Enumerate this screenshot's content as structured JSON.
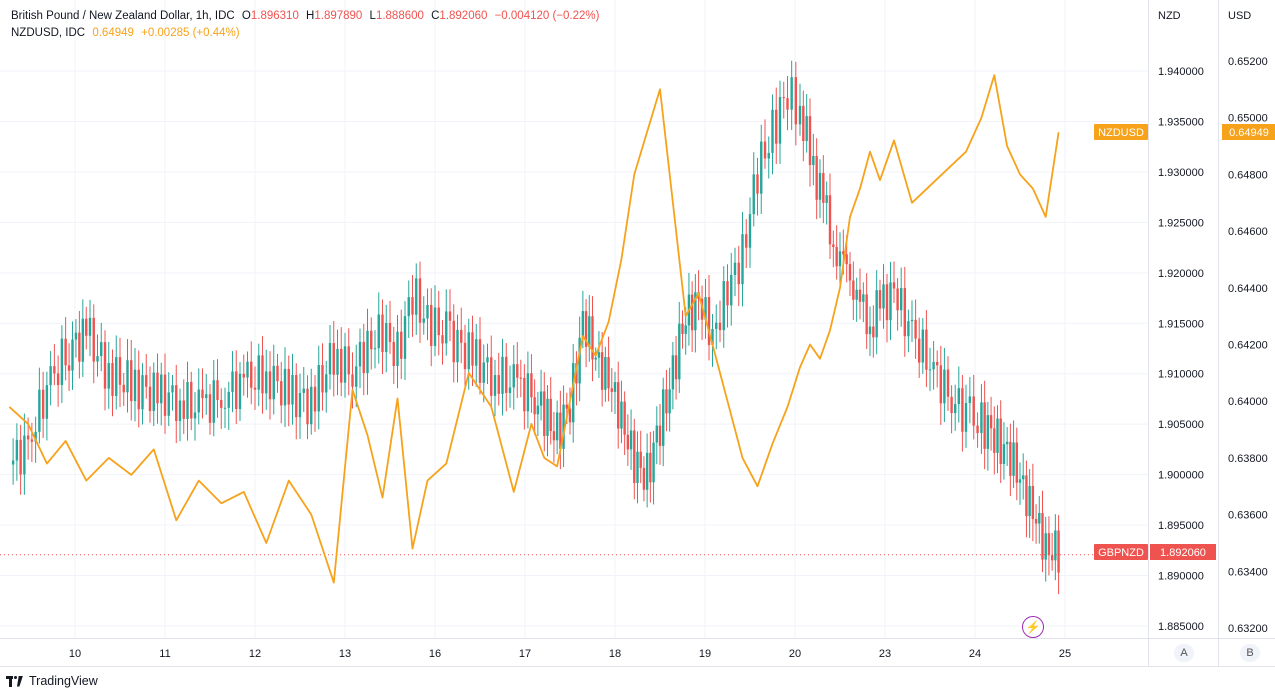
{
  "legend": {
    "main_title": "British Pound / New Zealand Dollar, 1h, IDC",
    "o_key": "O",
    "o_val": "1.896310",
    "h_key": "H",
    "h_val": "1.897890",
    "l_key": "L",
    "l_val": "1.888600",
    "c_key": "C",
    "c_val": "1.892060",
    "change": "−0.004120 (−0.22%)",
    "overlay_title": "NZDUSD, IDC",
    "overlay_val": "0.64949",
    "overlay_change": "+0.00285 (+0.44%)"
  },
  "axis_headers": {
    "right": "NZD",
    "left_scale": "USD"
  },
  "badges": {
    "overlay_label": "NZDUSD",
    "overlay_value": "0.64949",
    "main_label": "GBPNZD",
    "main_value": "1.892060"
  },
  "footer": {
    "brand": "TradingView"
  },
  "buttons": {
    "a": "A",
    "b": "B"
  },
  "colors": {
    "up": "#26a69a",
    "down": "#ef5350",
    "overlay": "#f7a21b",
    "grid": "#f0f3fa"
  },
  "chart_data": {
    "type": "candlestick",
    "title": "British Pound / New Zealand Dollar, 1h, IDC",
    "x_ticks": [
      "10",
      "11",
      "12",
      "13",
      "16",
      "17",
      "18",
      "19",
      "20",
      "23",
      "24",
      "25"
    ],
    "y_ticks_nzd": [
      "1.940000",
      "1.935000",
      "1.930000",
      "1.925000",
      "1.920000",
      "1.915000",
      "1.910000",
      "1.905000",
      "1.900000",
      "1.895000",
      "1.890000",
      "1.885000"
    ],
    "y_ticks_usd": [
      "0.65200",
      "0.65000",
      "0.64800",
      "0.64600",
      "0.64400",
      "0.64200",
      "0.64000",
      "0.63800",
      "0.63600",
      "0.63400",
      "0.63200"
    ],
    "ylim_nzd": [
      1.8834,
      1.9446
    ],
    "ylim_usd": [
      0.6314,
      0.6534
    ],
    "series": [
      {
        "name": "GBPNZD",
        "axis": "NZD",
        "close_path": [
          [
            "9",
            1.901
          ],
          [
            "9",
            1.903
          ],
          [
            "9",
            1.9085
          ],
          [
            "9",
            1.912
          ],
          [
            "10",
            1.914
          ],
          [
            "10",
            1.91
          ],
          [
            "10",
            1.909
          ],
          [
            "10",
            1.908
          ],
          [
            "11",
            1.9075
          ],
          [
            "11",
            1.9065
          ],
          [
            "11",
            1.908
          ],
          [
            "11",
            1.909
          ],
          [
            "12",
            1.91
          ],
          [
            "12",
            1.908
          ],
          [
            "12",
            1.907
          ],
          [
            "12",
            1.912
          ],
          [
            "13",
            1.91
          ],
          [
            "13",
            1.913
          ],
          [
            "13",
            1.914
          ],
          [
            "13",
            1.912
          ],
          [
            "13",
            1.918
          ],
          [
            "13",
            1.915
          ],
          [
            "16",
            1.914
          ],
          [
            "16",
            1.912
          ],
          [
            "16",
            1.91
          ],
          [
            "16",
            1.909
          ],
          [
            "17",
            1.908
          ],
          [
            "17",
            1.906
          ],
          [
            "17",
            1.904
          ],
          [
            "17",
            1.907
          ],
          [
            "17",
            1.915
          ],
          [
            "17",
            1.912
          ],
          [
            "17",
            1.909
          ],
          [
            "18",
            1.906
          ],
          [
            "18",
            1.901
          ],
          [
            "18",
            1.9
          ],
          [
            "18",
            1.905
          ],
          [
            "18",
            1.91
          ],
          [
            "18",
            1.916
          ],
          [
            "18",
            1.917
          ],
          [
            "19",
            1.914
          ],
          [
            "19",
            1.918
          ],
          [
            "19",
            1.922
          ],
          [
            "19",
            1.93
          ],
          [
            "19",
            1.934
          ],
          [
            "19",
            1.938
          ],
          [
            "20",
            1.936
          ],
          [
            "20",
            1.932
          ],
          [
            "20",
            1.928
          ],
          [
            "20",
            1.925
          ],
          [
            "20",
            1.92
          ],
          [
            "20",
            1.921
          ],
          [
            "20",
            1.916
          ],
          [
            "20",
            1.915
          ],
          [
            "20",
            1.917
          ],
          [
            "23",
            1.918
          ],
          [
            "23",
            1.914
          ],
          [
            "23",
            1.911
          ],
          [
            "23",
            1.908
          ],
          [
            "23",
            1.906
          ],
          [
            "24",
            1.905
          ],
          [
            "24",
            1.904
          ],
          [
            "24",
            1.902
          ],
          [
            "24",
            1.9
          ],
          [
            "24",
            1.896
          ],
          [
            "24",
            1.893
          ],
          [
            "24",
            1.8921
          ]
        ]
      },
      {
        "name": "NZDUSD",
        "axis": "USD",
        "close_path": [
          [
            "9",
            0.6398
          ],
          [
            "9",
            0.6392
          ],
          [
            "9",
            0.6378
          ],
          [
            "9",
            0.6386
          ],
          [
            "10",
            0.6372
          ],
          [
            "10",
            0.638
          ],
          [
            "10",
            0.6374
          ],
          [
            "10",
            0.6383
          ],
          [
            "11",
            0.6358
          ],
          [
            "11",
            0.6372
          ],
          [
            "11",
            0.6364
          ],
          [
            "11",
            0.6368
          ],
          [
            "12",
            0.635
          ],
          [
            "12",
            0.6372
          ],
          [
            "12",
            0.636
          ],
          [
            "12",
            0.6336
          ],
          [
            "13",
            0.6404
          ],
          [
            "13",
            0.6388
          ],
          [
            "13",
            0.6366
          ],
          [
            "13",
            0.6401
          ],
          [
            "13",
            0.6348
          ],
          [
            "13",
            0.6372
          ],
          [
            "16",
            0.6378
          ],
          [
            "16",
            0.641
          ],
          [
            "16",
            0.6398
          ],
          [
            "16",
            0.6368
          ],
          [
            "17",
            0.6392
          ],
          [
            "17",
            0.638
          ],
          [
            "17",
            0.6377
          ],
          [
            "17",
            0.64
          ],
          [
            "17",
            0.6423
          ],
          [
            "17",
            0.6416
          ],
          [
            "17",
            0.6428
          ],
          [
            "18",
            0.645
          ],
          [
            "18",
            0.648
          ],
          [
            "18",
            0.6495
          ],
          [
            "18",
            0.651
          ],
          [
            "18",
            0.647
          ],
          [
            "18",
            0.643
          ],
          [
            "18",
            0.6438
          ],
          [
            "19",
            0.642
          ],
          [
            "19",
            0.64
          ],
          [
            "19",
            0.638
          ],
          [
            "19",
            0.637
          ],
          [
            "19",
            0.6385
          ],
          [
            "19",
            0.6398
          ],
          [
            "20",
            0.6412
          ],
          [
            "20",
            0.642
          ],
          [
            "20",
            0.6415
          ],
          [
            "20",
            0.6425
          ],
          [
            "20",
            0.644
          ],
          [
            "20",
            0.6465
          ],
          [
            "20",
            0.6475
          ],
          [
            "20",
            0.6488
          ],
          [
            "20",
            0.6478
          ],
          [
            "23",
            0.6492
          ],
          [
            "23",
            0.647
          ],
          [
            "23",
            0.6476
          ],
          [
            "23",
            0.6482
          ],
          [
            "23",
            0.6488
          ],
          [
            "24",
            0.65
          ],
          [
            "24",
            0.6515
          ],
          [
            "24",
            0.649
          ],
          [
            "24",
            0.648
          ],
          [
            "24",
            0.6475
          ],
          [
            "24",
            0.6465
          ],
          [
            "24",
            0.64949
          ]
        ]
      }
    ]
  }
}
